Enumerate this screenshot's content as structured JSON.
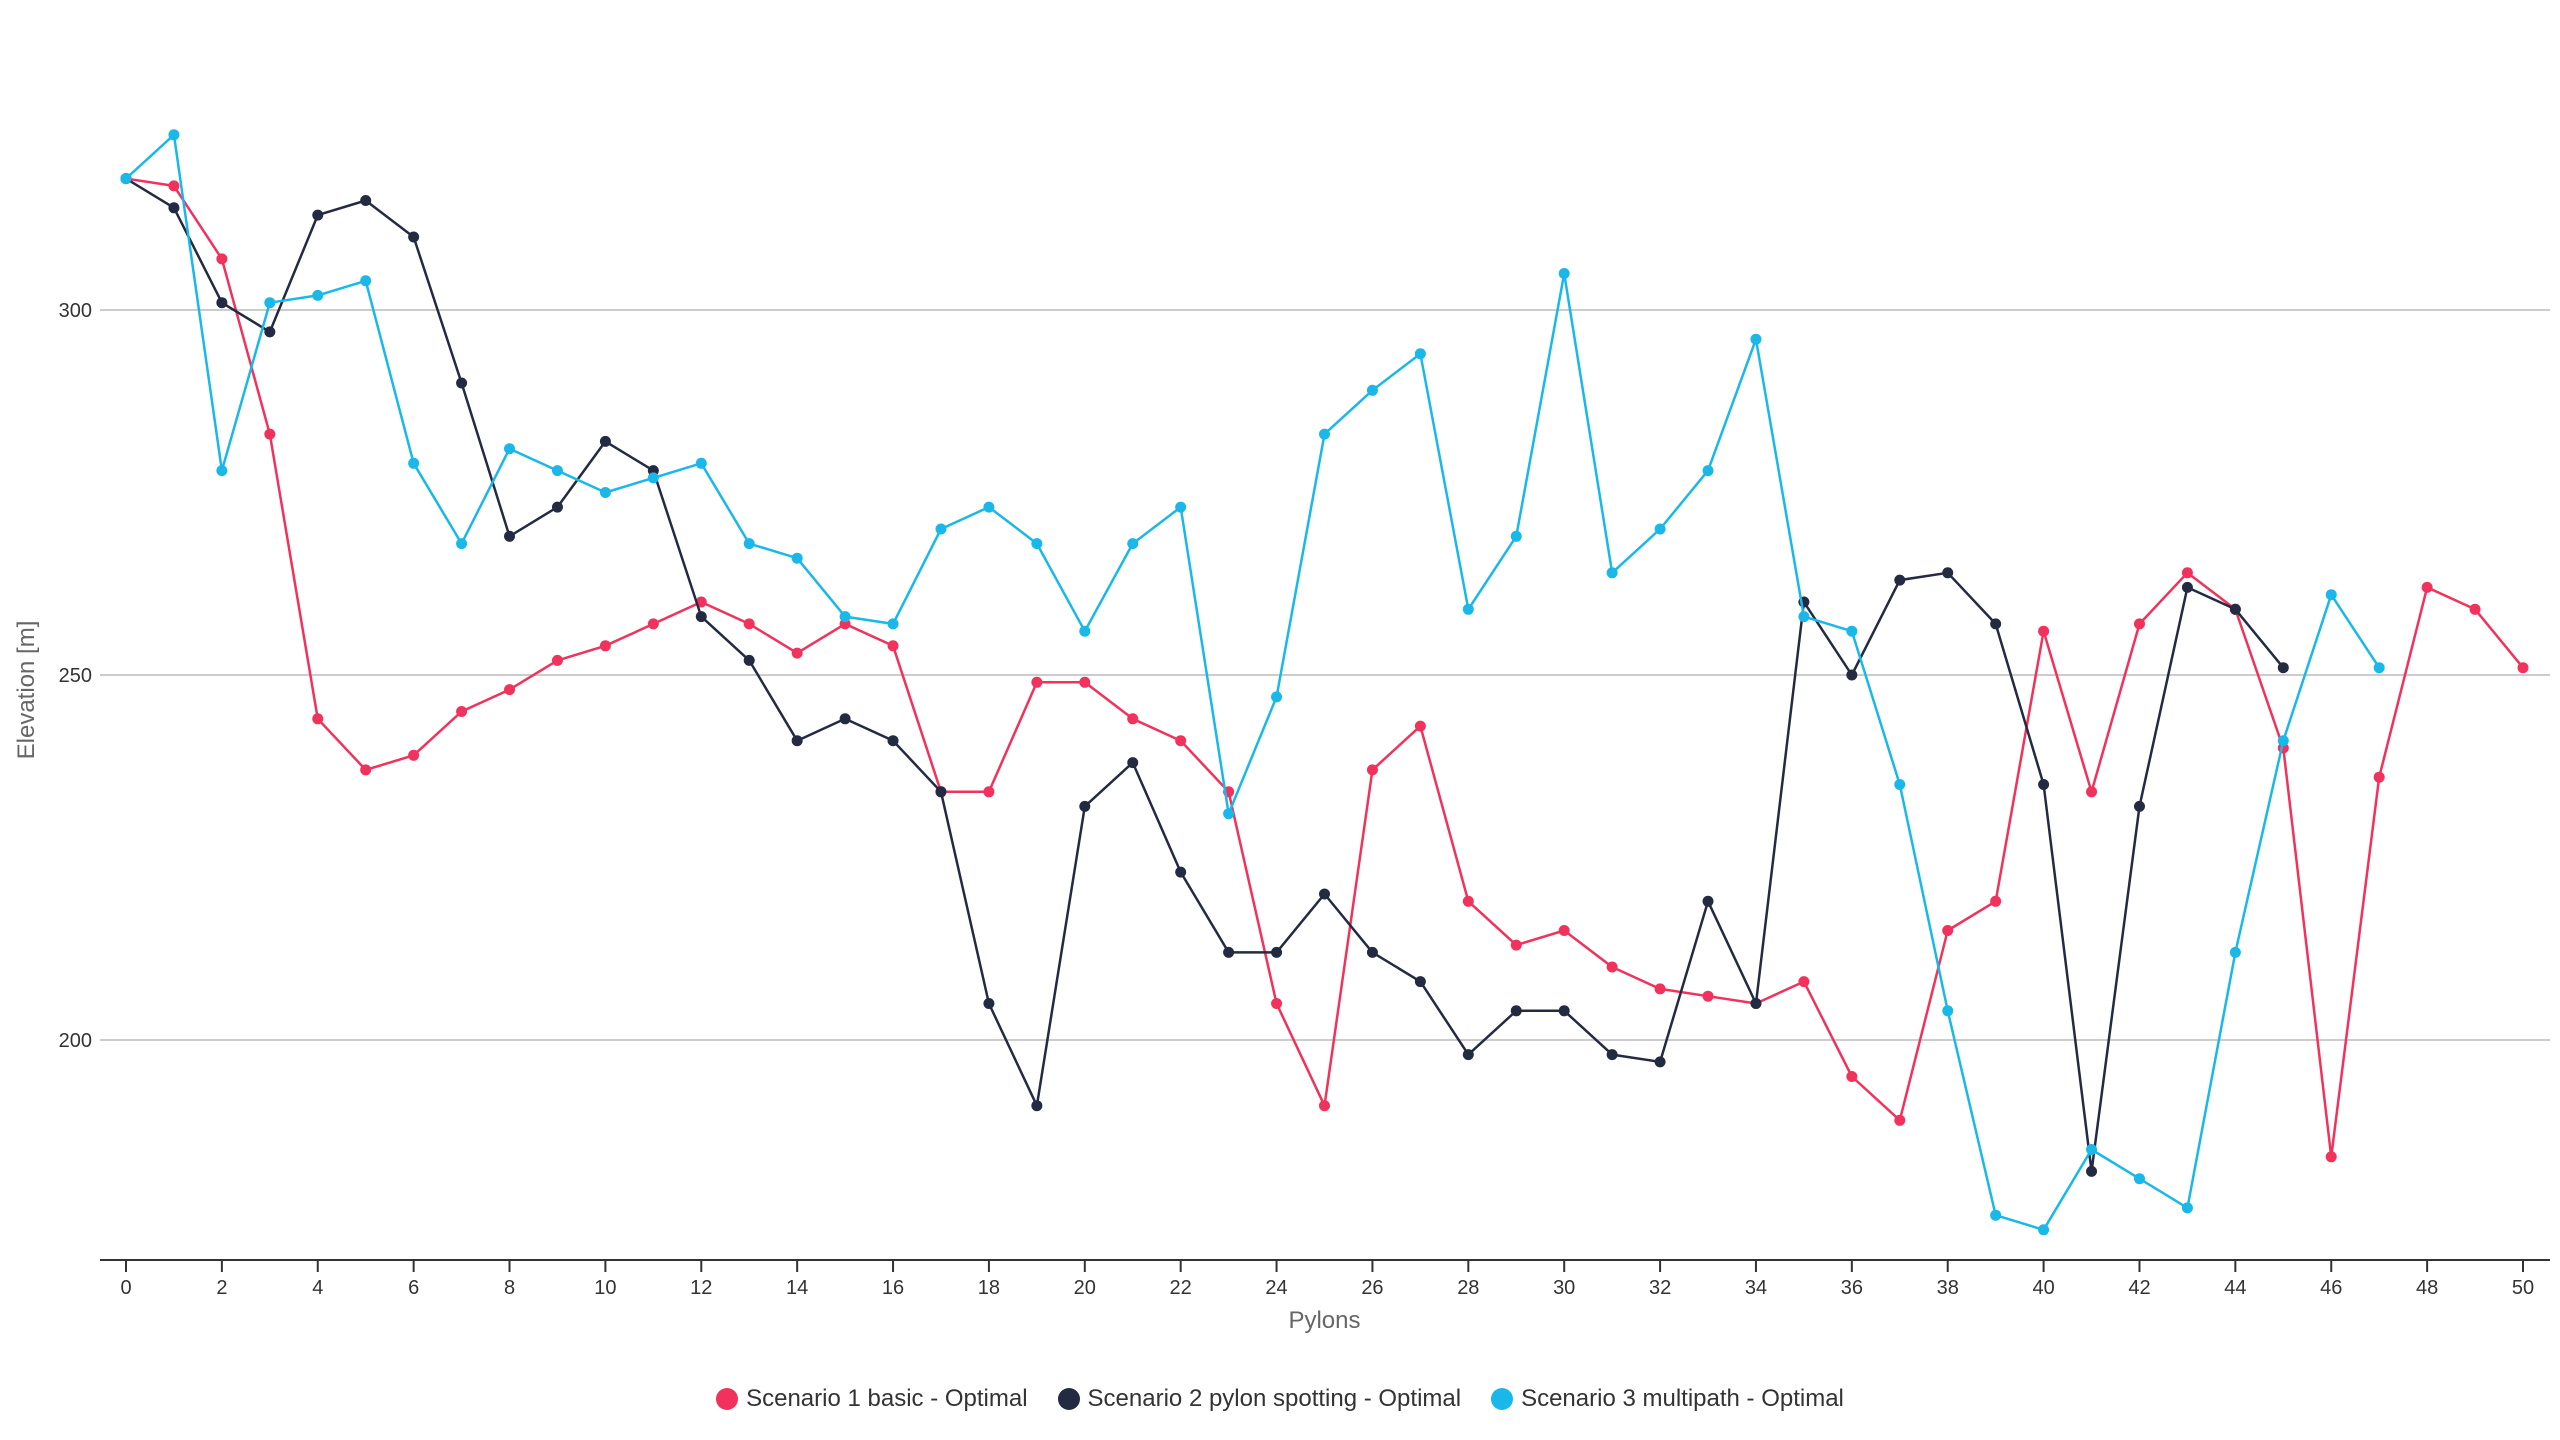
{
  "chart_data": {
    "type": "line",
    "xlabel": "Pylons",
    "ylabel": "Elevation [m]",
    "xlim": [
      -0.5,
      50.6
    ],
    "ylim": [
      170,
      340
    ],
    "x_ticks": [
      0,
      2,
      4,
      6,
      8,
      10,
      12,
      14,
      16,
      18,
      20,
      22,
      24,
      26,
      28,
      30,
      32,
      34,
      36,
      38,
      40,
      42,
      44,
      46,
      48,
      50
    ],
    "y_ticks": [
      200,
      250,
      300
    ],
    "grid": true,
    "legend_position": "bottom-center",
    "series": [
      {
        "name": "Scenario 1 basic - Optimal",
        "color": "#f0325c",
        "x": [
          0,
          1,
          2,
          3,
          4,
          5,
          6,
          7,
          8,
          9,
          10,
          11,
          12,
          13,
          14,
          15,
          16,
          17,
          18,
          19,
          20,
          21,
          22,
          23,
          24,
          25,
          26,
          27,
          28,
          29,
          30,
          31,
          32,
          33,
          34,
          35,
          36,
          37,
          38,
          39,
          40,
          41,
          42,
          43,
          44,
          45,
          46,
          47,
          48,
          49,
          50
        ],
        "values": [
          318,
          317,
          307,
          283,
          244,
          237,
          239,
          245,
          248,
          252,
          254,
          257,
          260,
          257,
          253,
          257,
          254,
          234,
          234,
          249,
          249,
          244,
          241,
          234,
          205,
          191,
          237,
          243,
          219,
          213,
          215,
          210,
          207,
          206,
          205,
          208,
          195,
          189,
          215,
          219,
          256,
          234,
          257,
          264,
          259,
          240,
          184,
          236,
          262,
          259,
          251
        ]
      },
      {
        "name": "Scenario 2 pylon spotting - Optimal",
        "color": "#232b43",
        "x": [
          0,
          1,
          2,
          3,
          4,
          5,
          6,
          7,
          8,
          9,
          10,
          11,
          12,
          13,
          14,
          15,
          16,
          17,
          18,
          19,
          20,
          21,
          22,
          23,
          24,
          25,
          26,
          27,
          28,
          29,
          30,
          31,
          32,
          33,
          34,
          35,
          36,
          37,
          38,
          39,
          40,
          41,
          42,
          43,
          44,
          45
        ],
        "values": [
          318,
          314,
          301,
          297,
          313,
          315,
          310,
          290,
          269,
          273,
          282,
          278,
          258,
          252,
          241,
          244,
          241,
          234,
          205,
          191,
          232,
          238,
          223,
          212,
          212,
          220,
          212,
          208,
          198,
          204,
          204,
          198,
          197,
          219,
          205,
          260,
          250,
          263,
          264,
          257,
          235,
          182,
          232,
          262,
          259,
          251
        ]
      },
      {
        "name": "Scenario 3 multipath - Optimal",
        "color": "#1ab8e8",
        "x": [
          0,
          1,
          2,
          3,
          4,
          5,
          6,
          7,
          8,
          9,
          10,
          11,
          12,
          13,
          14,
          15,
          16,
          17,
          18,
          19,
          20,
          21,
          22,
          23,
          24,
          25,
          26,
          27,
          28,
          29,
          30,
          31,
          32,
          33,
          34,
          35,
          36,
          37,
          38,
          39,
          40,
          41,
          42,
          43,
          44,
          45,
          46,
          47
        ],
        "values": [
          318,
          324,
          278,
          301,
          302,
          304,
          279,
          268,
          281,
          278,
          275,
          277,
          279,
          268,
          266,
          258,
          257,
          270,
          273,
          268,
          256,
          268,
          273,
          231,
          247,
          283,
          289,
          294,
          259,
          269,
          305,
          264,
          270,
          278,
          296,
          258,
          256,
          235,
          204,
          176,
          174,
          185,
          181,
          177,
          212,
          241,
          261,
          251
        ]
      }
    ]
  }
}
